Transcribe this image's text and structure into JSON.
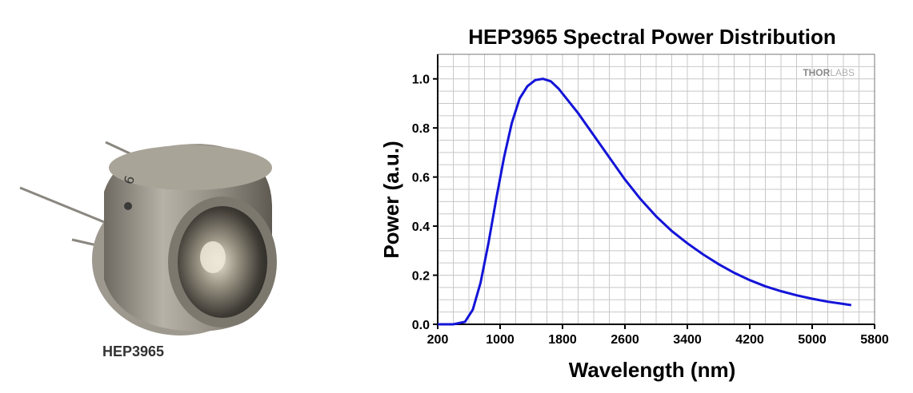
{
  "product": {
    "caption": "HEP3965"
  },
  "brand": {
    "logo_text_bold": "THOR",
    "logo_text_light": "LABS"
  },
  "colors": {
    "curve": "#1414d8",
    "grid": "#c8c8c8",
    "axis": "#000000"
  },
  "chart_data": {
    "type": "line",
    "title": "HEP3965 Spectral Power Distribution",
    "xlabel": "Wavelength (nm)",
    "ylabel": "Power (a.u.)",
    "xlim": [
      200,
      5800
    ],
    "ylim": [
      0,
      1.1
    ],
    "xticks": [
      200,
      1000,
      1800,
      2600,
      3400,
      4200,
      5000,
      5800
    ],
    "yticks": [
      0.0,
      0.2,
      0.4,
      0.6,
      0.8,
      1.0
    ],
    "ytick_labels": [
      "0.0",
      "0.2",
      "0.4",
      "0.6",
      "0.8",
      "1.0"
    ],
    "grid": true,
    "series": [
      {
        "x": [
          200,
          400,
          550,
          650,
          750,
          850,
          950,
          1050,
          1150,
          1250,
          1350,
          1450,
          1550,
          1650,
          1750,
          1850,
          2000,
          2200,
          2400,
          2600,
          2800,
          3000,
          3200,
          3400,
          3600,
          3800,
          4000,
          4200,
          4400,
          4600,
          4800,
          5000,
          5200,
          5400,
          5500
        ],
        "y": [
          0.0,
          0.0,
          0.01,
          0.06,
          0.17,
          0.33,
          0.51,
          0.68,
          0.82,
          0.92,
          0.97,
          0.995,
          1.0,
          0.99,
          0.96,
          0.92,
          0.86,
          0.77,
          0.68,
          0.59,
          0.51,
          0.44,
          0.38,
          0.33,
          0.285,
          0.245,
          0.21,
          0.18,
          0.155,
          0.135,
          0.118,
          0.104,
          0.092,
          0.083,
          0.078
        ]
      }
    ]
  }
}
